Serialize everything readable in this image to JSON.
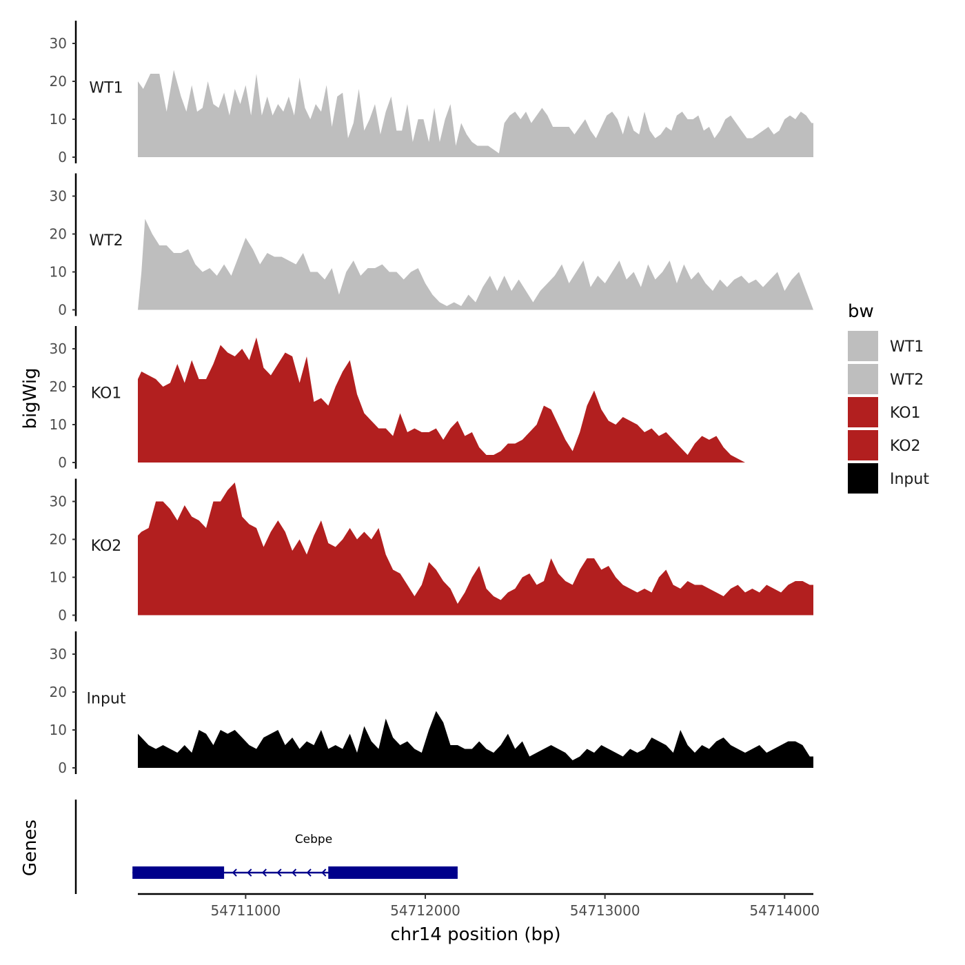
{
  "chart_data": {
    "type": "area",
    "ylabel": "bigWig",
    "xlabel": "chr14 position (bp)",
    "ylim": [
      0,
      36
    ],
    "yticks": [
      0,
      10,
      20,
      30
    ],
    "xlim": [
      54710400,
      54714160
    ],
    "xticks": [
      54711000,
      54712000,
      54713000,
      54714000
    ],
    "xtick_labels": [
      "54711000",
      "54712000",
      "54713000",
      "54714000"
    ],
    "legend": {
      "title": "bw",
      "entries": [
        {
          "label": "WT1",
          "color": "#bebebe"
        },
        {
          "label": "WT2",
          "color": "#bebebe"
        },
        {
          "label": "KO1",
          "color": "#b21f1f"
        },
        {
          "label": "KO2",
          "color": "#b21f1f"
        },
        {
          "label": "Input",
          "color": "#000000"
        }
      ],
      "placement": "right"
    },
    "series": [
      {
        "name": "WT1",
        "color": "#bebebe",
        "x": [
          54710400,
          54710430,
          54710470,
          54710520,
          54710560,
          54710600,
          54710640,
          54710670,
          54710700,
          54710730,
          54710760,
          54710790,
          54710820,
          54710850,
          54710880,
          54710910,
          54710940,
          54710970,
          54711000,
          54711030,
          54711060,
          54711090,
          54711120,
          54711150,
          54711180,
          54711210,
          54711240,
          54711270,
          54711300,
          54711330,
          54711360,
          54711390,
          54711420,
          54711450,
          54711480,
          54711510,
          54711540,
          54711570,
          54711600,
          54711630,
          54711660,
          54711690,
          54711720,
          54711750,
          54711780,
          54711810,
          54711840,
          54711870,
          54711900,
          54711930,
          54711960,
          54711990,
          54712020,
          54712050,
          54712080,
          54712110,
          54712140,
          54712170,
          54712200,
          54712230,
          54712260,
          54712290,
          54712320,
          54712350,
          54712380,
          54712410,
          54712440,
          54712470,
          54712500,
          54712530,
          54712560,
          54712590,
          54712620,
          54712650,
          54712680,
          54712710,
          54712740,
          54712770,
          54712800,
          54712830,
          54712860,
          54712890,
          54712920,
          54712950,
          54712980,
          54713010,
          54713040,
          54713070,
          54713100,
          54713130,
          54713160,
          54713190,
          54713220,
          54713250,
          54713280,
          54713310,
          54713340,
          54713370,
          54713400,
          54713430,
          54713460,
          54713490,
          54713520,
          54713550,
          54713580,
          54713610,
          54713640,
          54713670,
          54713700,
          54713730,
          54713760,
          54713790,
          54713820,
          54713850,
          54713880,
          54713910,
          54713940,
          54713970,
          54714000,
          54714030,
          54714060,
          54714090,
          54714120,
          54714150,
          54714160
        ],
        "values": [
          20,
          18,
          22,
          22,
          12,
          23,
          16,
          12,
          19,
          12,
          13,
          20,
          14,
          13,
          17,
          11,
          18,
          14,
          19,
          11,
          22,
          11,
          16,
          11,
          14,
          12,
          16,
          11,
          21,
          13,
          10,
          14,
          12,
          19,
          8,
          16,
          17,
          5,
          9,
          18,
          7,
          10,
          14,
          6,
          12,
          16,
          7,
          7,
          14,
          4,
          10,
          10,
          4,
          13,
          4,
          10,
          14,
          3,
          9,
          6,
          4,
          3,
          3,
          3,
          2,
          1,
          9,
          11,
          12,
          10,
          12,
          9,
          11,
          13,
          11,
          8,
          8,
          8,
          8,
          6,
          8,
          10,
          7,
          5,
          8,
          11,
          12,
          10,
          6,
          11,
          7,
          6,
          12,
          7,
          5,
          6,
          8,
          7,
          11,
          12,
          10,
          10,
          11,
          7,
          8,
          5,
          7,
          10,
          11,
          9,
          7,
          5,
          5,
          6,
          7,
          8,
          6,
          7,
          10,
          11,
          10,
          12,
          11,
          9,
          9
        ]
      },
      {
        "name": "WT2",
        "color": "#bebebe",
        "x": [
          54710400,
          54710420,
          54710440,
          54710480,
          54710520,
          54710560,
          54710600,
          54710640,
          54710680,
          54710720,
          54710760,
          54710800,
          54710840,
          54710880,
          54710920,
          54710960,
          54711000,
          54711040,
          54711080,
          54711120,
          54711160,
          54711200,
          54711240,
          54711280,
          54711320,
          54711360,
          54711400,
          54711440,
          54711480,
          54711520,
          54711560,
          54711600,
          54711640,
          54711680,
          54711720,
          54711760,
          54711800,
          54711840,
          54711880,
          54711920,
          54711960,
          54712000,
          54712040,
          54712080,
          54712120,
          54712160,
          54712200,
          54712240,
          54712280,
          54712320,
          54712360,
          54712400,
          54712440,
          54712480,
          54712520,
          54712560,
          54712600,
          54712640,
          54712680,
          54712720,
          54712760,
          54712800,
          54712840,
          54712880,
          54712920,
          54712960,
          54713000,
          54713040,
          54713080,
          54713120,
          54713160,
          54713200,
          54713240,
          54713280,
          54713320,
          54713360,
          54713400,
          54713440,
          54713480,
          54713520,
          54713560,
          54713600,
          54713640,
          54713680,
          54713720,
          54713760,
          54713800,
          54713840,
          54713880,
          54713920,
          54713960,
          54714000,
          54714040,
          54714080,
          54714120,
          54714160
        ],
        "values": [
          0,
          10,
          24,
          20,
          17,
          17,
          15,
          15,
          16,
          12,
          10,
          11,
          9,
          12,
          9,
          14,
          19,
          16,
          12,
          15,
          14,
          14,
          13,
          12,
          15,
          10,
          10,
          8,
          11,
          4,
          10,
          13,
          9,
          11,
          11,
          12,
          10,
          10,
          8,
          10,
          11,
          7,
          4,
          2,
          1,
          2,
          1,
          4,
          2,
          6,
          9,
          5,
          9,
          5,
          8,
          5,
          2,
          5,
          7,
          9,
          12,
          7,
          10,
          13,
          6,
          9,
          7,
          10,
          13,
          8,
          10,
          6,
          12,
          8,
          10,
          13,
          7,
          12,
          8,
          10,
          7,
          5,
          8,
          6,
          8,
          9,
          7,
          8,
          6,
          8,
          10,
          5,
          8,
          10,
          5,
          0
        ]
      },
      {
        "name": "KO1",
        "color": "#b21f1f",
        "x": [
          54710400,
          54710420,
          54710460,
          54710500,
          54710540,
          54710580,
          54710620,
          54710660,
          54710700,
          54710740,
          54710780,
          54710820,
          54710860,
          54710900,
          54710940,
          54710980,
          54711020,
          54711060,
          54711100,
          54711140,
          54711180,
          54711220,
          54711260,
          54711300,
          54711340,
          54711380,
          54711420,
          54711460,
          54711500,
          54711540,
          54711580,
          54711620,
          54711660,
          54711700,
          54711740,
          54711780,
          54711820,
          54711860,
          54711900,
          54711940,
          54711980,
          54712020,
          54712060,
          54712100,
          54712140,
          54712180,
          54712220,
          54712260,
          54712300,
          54712340,
          54712380,
          54712420,
          54712460,
          54712500,
          54712540,
          54712580,
          54712620,
          54712660,
          54712700,
          54712740,
          54712780,
          54712820,
          54712860,
          54712900,
          54712940,
          54712980,
          54713020,
          54713060,
          54713100,
          54713140,
          54713180,
          54713220,
          54713260,
          54713300,
          54713340,
          54713380,
          54713420,
          54713460,
          54713500,
          54713540,
          54713580,
          54713620,
          54713660,
          54713700,
          54713740,
          54713780,
          54713820,
          54713860,
          54713900,
          54713940,
          54713980,
          54714020,
          54714060,
          54714100,
          54714140,
          54714160
        ],
        "values": [
          22,
          24,
          23,
          22,
          20,
          21,
          26,
          21,
          27,
          22,
          22,
          26,
          31,
          29,
          28,
          30,
          27,
          33,
          25,
          23,
          26,
          29,
          28,
          21,
          28,
          16,
          17,
          15,
          20,
          24,
          27,
          18,
          13,
          11,
          9,
          9,
          7,
          13,
          8,
          9,
          8,
          8,
          9,
          6,
          9,
          11,
          7,
          8,
          4,
          2,
          2,
          3,
          5,
          5,
          6,
          8,
          10,
          15,
          14,
          10,
          6,
          3,
          8,
          15,
          19,
          14,
          11,
          10,
          12,
          11,
          10,
          8,
          9,
          7,
          8,
          6,
          4,
          2,
          5,
          7,
          6,
          7,
          4,
          2,
          1,
          0,
          0,
          0,
          0,
          0,
          0,
          0,
          0,
          0,
          0,
          0
        ]
      },
      {
        "name": "KO2",
        "color": "#b21f1f",
        "x": [
          54710400,
          54710420,
          54710460,
          54710500,
          54710540,
          54710580,
          54710620,
          54710660,
          54710700,
          54710740,
          54710780,
          54710820,
          54710860,
          54710900,
          54710940,
          54710980,
          54711020,
          54711060,
          54711100,
          54711140,
          54711180,
          54711220,
          54711260,
          54711300,
          54711340,
          54711380,
          54711420,
          54711460,
          54711500,
          54711540,
          54711580,
          54711620,
          54711660,
          54711700,
          54711740,
          54711780,
          54711820,
          54711860,
          54711900,
          54711940,
          54711980,
          54712020,
          54712060,
          54712100,
          54712140,
          54712180,
          54712220,
          54712260,
          54712300,
          54712340,
          54712380,
          54712420,
          54712460,
          54712500,
          54712540,
          54712580,
          54712620,
          54712660,
          54712700,
          54712740,
          54712780,
          54712820,
          54712860,
          54712900,
          54712940,
          54712980,
          54713020,
          54713060,
          54713100,
          54713140,
          54713180,
          54713220,
          54713260,
          54713300,
          54713340,
          54713380,
          54713420,
          54713460,
          54713500,
          54713540,
          54713580,
          54713620,
          54713660,
          54713700,
          54713740,
          54713780,
          54713820,
          54713860,
          54713900,
          54713940,
          54713980,
          54714020,
          54714060,
          54714100,
          54714140,
          54714160
        ],
        "values": [
          21,
          22,
          23,
          30,
          30,
          28,
          25,
          29,
          26,
          25,
          23,
          30,
          30,
          33,
          35,
          26,
          24,
          23,
          18,
          22,
          25,
          22,
          17,
          20,
          16,
          21,
          25,
          19,
          18,
          20,
          23,
          20,
          22,
          20,
          23,
          16,
          12,
          11,
          8,
          5,
          8,
          14,
          12,
          9,
          7,
          3,
          6,
          10,
          13,
          7,
          5,
          4,
          6,
          7,
          10,
          11,
          8,
          9,
          15,
          11,
          9,
          8,
          12,
          15,
          15,
          12,
          13,
          10,
          8,
          7,
          6,
          7,
          6,
          10,
          12,
          8,
          7,
          9,
          8,
          8,
          7,
          6,
          5,
          7,
          8,
          6,
          7,
          6,
          8,
          7,
          6,
          8,
          9,
          9,
          8,
          8
        ]
      },
      {
        "name": "Input",
        "color": "#000000",
        "x": [
          54710400,
          54710420,
          54710460,
          54710500,
          54710540,
          54710580,
          54710620,
          54710660,
          54710700,
          54710740,
          54710780,
          54710820,
          54710860,
          54710900,
          54710940,
          54710980,
          54711020,
          54711060,
          54711100,
          54711140,
          54711180,
          54711220,
          54711260,
          54711300,
          54711340,
          54711380,
          54711420,
          54711460,
          54711500,
          54711540,
          54711580,
          54711620,
          54711660,
          54711700,
          54711740,
          54711780,
          54711820,
          54711860,
          54711900,
          54711940,
          54711980,
          54712020,
          54712060,
          54712100,
          54712140,
          54712180,
          54712220,
          54712260,
          54712300,
          54712340,
          54712380,
          54712420,
          54712460,
          54712500,
          54712540,
          54712580,
          54712620,
          54712660,
          54712700,
          54712740,
          54712780,
          54712820,
          54712860,
          54712900,
          54712940,
          54712980,
          54713020,
          54713060,
          54713100,
          54713140,
          54713180,
          54713220,
          54713260,
          54713300,
          54713340,
          54713380,
          54713420,
          54713460,
          54713500,
          54713540,
          54713580,
          54713620,
          54713660,
          54713700,
          54713740,
          54713780,
          54713820,
          54713860,
          54713900,
          54713940,
          54713980,
          54714020,
          54714060,
          54714100,
          54714140,
          54714160
        ],
        "values": [
          9,
          8,
          6,
          5,
          6,
          5,
          4,
          6,
          4,
          10,
          9,
          6,
          10,
          9,
          10,
          8,
          6,
          5,
          8,
          9,
          10,
          6,
          8,
          5,
          7,
          6,
          10,
          5,
          6,
          5,
          9,
          4,
          11,
          7,
          5,
          13,
          8,
          6,
          7,
          5,
          4,
          10,
          15,
          12,
          6,
          6,
          5,
          5,
          7,
          5,
          4,
          6,
          9,
          5,
          7,
          3,
          4,
          5,
          6,
          5,
          4,
          2,
          3,
          5,
          4,
          6,
          5,
          4,
          3,
          5,
          4,
          5,
          8,
          7,
          6,
          4,
          10,
          6,
          4,
          6,
          5,
          7,
          8,
          6,
          5,
          4,
          5,
          6,
          4,
          5,
          6,
          7,
          7,
          6,
          3,
          3
        ]
      }
    ],
    "gene_track": {
      "label": "Genes",
      "genes": [
        {
          "name": "Cebpe",
          "start": 54710370,
          "end": 54712180,
          "strand": "-",
          "exons": [
            [
              54710370,
              54710880
            ],
            [
              54711460,
              54712180
            ]
          ]
        }
      ]
    }
  }
}
